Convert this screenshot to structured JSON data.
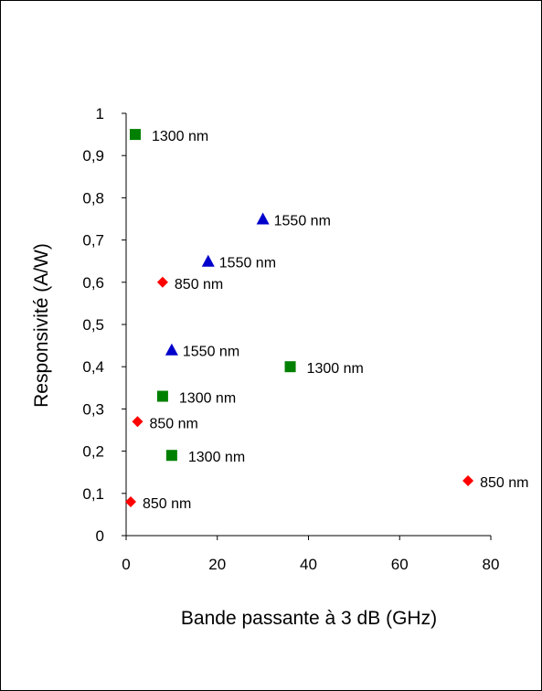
{
  "chart_data": {
    "type": "scatter",
    "xlabel": "Bande passante à 3 dB (GHz)",
    "ylabel": "Responsivité (A/W)",
    "xlim": [
      0,
      80
    ],
    "ylim": [
      0,
      1
    ],
    "x_ticks": [
      "0",
      "20",
      "40",
      "60",
      "80"
    ],
    "y_ticks": [
      "0",
      "0,1",
      "0,2",
      "0,3",
      "0,4",
      "0,5",
      "0,6",
      "0,7",
      "0,8",
      "0,9",
      "1"
    ],
    "grid": false,
    "legend": "none",
    "series": [
      {
        "marker": "diamond",
        "color": "#ff0000",
        "points": [
          {
            "x": 1,
            "y": 0.08,
            "label": "850 nm"
          },
          {
            "x": 2.5,
            "y": 0.27,
            "label": "850 nm"
          },
          {
            "x": 8,
            "y": 0.6,
            "label": "850 nm"
          },
          {
            "x": 75,
            "y": 0.13,
            "label": "850 nm"
          }
        ]
      },
      {
        "marker": "square",
        "color": "#008000",
        "points": [
          {
            "x": 2,
            "y": 0.95,
            "label": "1300 nm"
          },
          {
            "x": 8,
            "y": 0.33,
            "label": "1300 nm"
          },
          {
            "x": 10,
            "y": 0.19,
            "label": "1300 nm"
          },
          {
            "x": 36,
            "y": 0.4,
            "label": "1300 nm"
          }
        ]
      },
      {
        "marker": "triangle",
        "color": "#0000cc",
        "points": [
          {
            "x": 10,
            "y": 0.44,
            "label": "1550 nm"
          },
          {
            "x": 18,
            "y": 0.65,
            "label": "1550 nm"
          },
          {
            "x": 30,
            "y": 0.75,
            "label": "1550 nm"
          }
        ]
      }
    ]
  }
}
